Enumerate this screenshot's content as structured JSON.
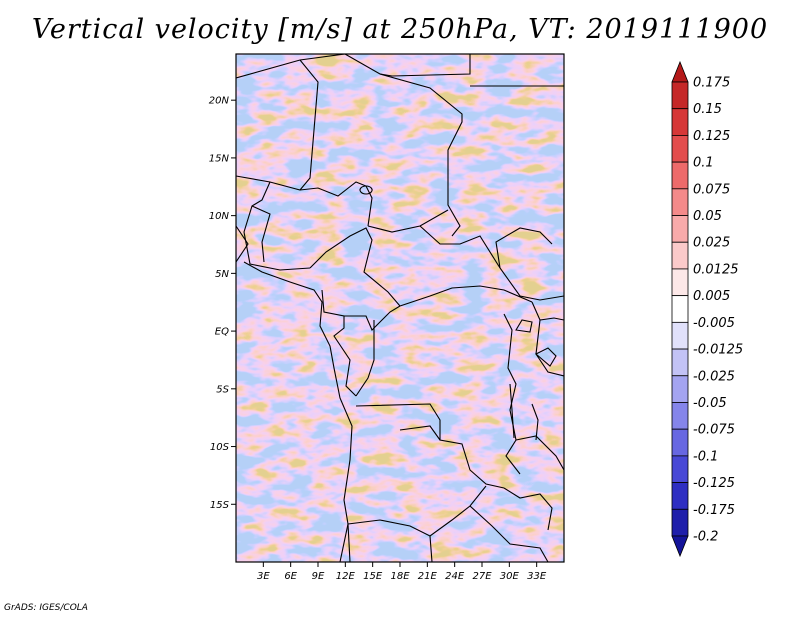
{
  "title": "Vertical velocity [m/s] at 250hPa, VT: 2019111900",
  "footer": "GrADS: IGES/COLA",
  "map": {
    "lon_range": [
      0,
      36
    ],
    "lat_range": [
      -20,
      24
    ],
    "lat_ticks": [
      {
        "value": 20,
        "label": "20N"
      },
      {
        "value": 15,
        "label": "15N"
      },
      {
        "value": 10,
        "label": "10N"
      },
      {
        "value": 5,
        "label": "5N"
      },
      {
        "value": 0,
        "label": "EQ"
      },
      {
        "value": -5,
        "label": "5S"
      },
      {
        "value": -10,
        "label": "10S"
      },
      {
        "value": -15,
        "label": "15S"
      }
    ],
    "lon_ticks": [
      {
        "value": 3,
        "label": "3E"
      },
      {
        "value": 6,
        "label": "6E"
      },
      {
        "value": 9,
        "label": "9E"
      },
      {
        "value": 12,
        "label": "12E"
      },
      {
        "value": 15,
        "label": "15E"
      },
      {
        "value": 18,
        "label": "18E"
      },
      {
        "value": 21,
        "label": "21E"
      },
      {
        "value": 24,
        "label": "24E"
      },
      {
        "value": 27,
        "label": "27E"
      },
      {
        "value": 30,
        "label": "30E"
      },
      {
        "value": 33,
        "label": "33E"
      }
    ]
  },
  "colorbar": {
    "labels": [
      "0.175",
      "0.15",
      "0.125",
      "0.1",
      "0.075",
      "0.05",
      "0.025",
      "0.0125",
      "0.005",
      "-0.005",
      "-0.0125",
      "-0.025",
      "-0.05",
      "-0.075",
      "-0.1",
      "-0.125",
      "-0.175",
      "-0.2"
    ],
    "colors": [
      "#b41919",
      "#c52828",
      "#d63737",
      "#e34d4d",
      "#ed6a6a",
      "#f48a8a",
      "#f8aaaa",
      "#fbcaca",
      "#fde8e8",
      "#ffffff",
      "#e1e1fb",
      "#c3c3f6",
      "#a4a4f0",
      "#8585ea",
      "#6767e2",
      "#4848d6",
      "#2e2ec2",
      "#1e1eaa",
      "#14149a"
    ]
  }
}
